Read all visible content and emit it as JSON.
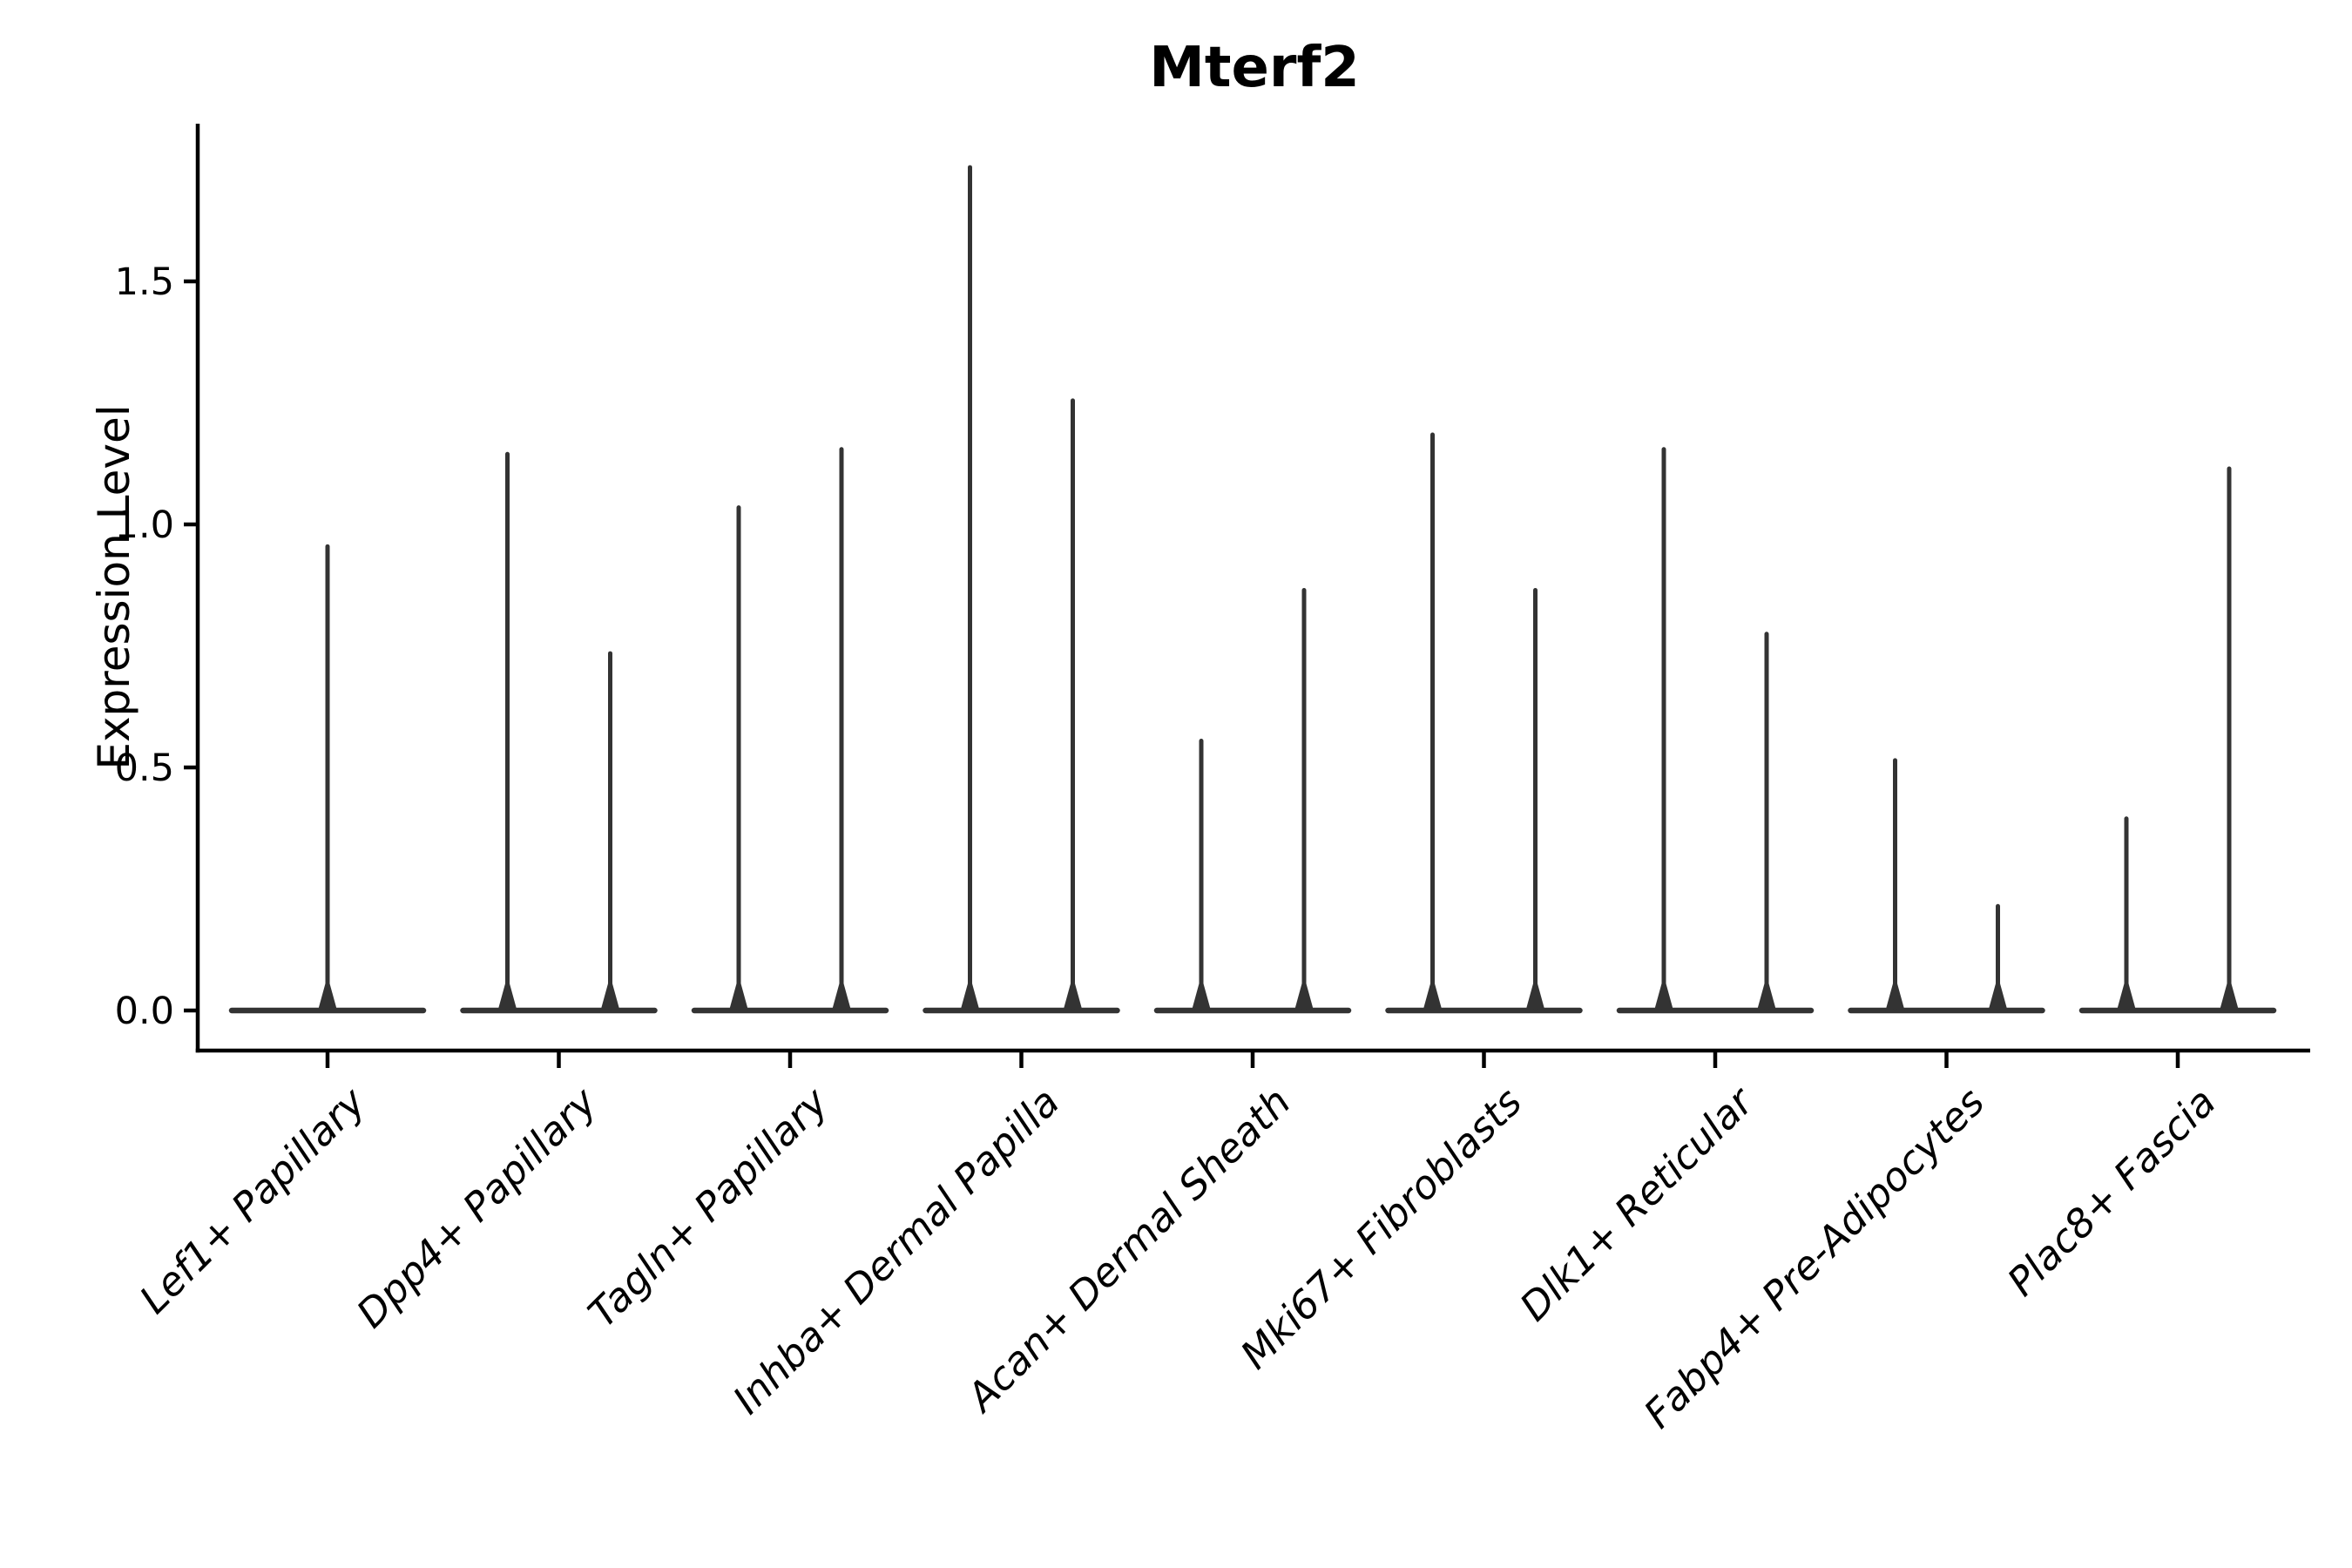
{
  "figure": {
    "background": "#ffffff"
  },
  "chart_data": {
    "type": "violin",
    "title": "Mterf2",
    "ylabel": "Expression Level",
    "xlabel": "",
    "ytick_labels": [
      "0.0",
      "0.5",
      "1.0",
      "1.5"
    ],
    "ytick_values": [
      0.0,
      0.5,
      1.0,
      1.5
    ],
    "ylim": [
      -0.08,
      1.82
    ],
    "grid": false,
    "legend": "none",
    "violin_color": "#333333",
    "axis_color": "#000000",
    "description": "Zero-inflated expression violins: each cell-type category shows a flat density bar at 0 with thin needle tails reaching the maximum expression value(s).",
    "categories": [
      "Lef1+ Papillary",
      "Dpp4+ Papillary",
      "Tagln+ Papillary",
      "Inhba+ Dermal Papilla",
      "Acan+ Dermal Sheath",
      "Mki67+ Fibroblasts",
      "Dlk1+ Reticular",
      "Fabp4+ Pre-Adipocytes",
      "Plac8+ Fascia"
    ],
    "series": [
      {
        "category": "Lef1+ Papillary",
        "peaks": [
          0.96
        ]
      },
      {
        "category": "Dpp4+ Papillary",
        "peaks": [
          1.15,
          0.74
        ]
      },
      {
        "category": "Tagln+ Papillary",
        "peaks": [
          1.04,
          1.16
        ]
      },
      {
        "category": "Inhba+ Dermal Papilla",
        "peaks": [
          1.74,
          1.26
        ]
      },
      {
        "category": "Acan+ Dermal Sheath",
        "peaks": [
          0.56,
          0.87
        ]
      },
      {
        "category": "Mki67+ Fibroblasts",
        "peaks": [
          1.19,
          0.87
        ]
      },
      {
        "category": "Dlk1+ Reticular",
        "peaks": [
          1.16,
          0.78
        ]
      },
      {
        "category": "Fabp4+ Pre-Adipocytes",
        "peaks": [
          0.52,
          0.22
        ]
      },
      {
        "category": "Plac8+ Fascia",
        "peaks": [
          0.4,
          1.12
        ]
      }
    ]
  }
}
